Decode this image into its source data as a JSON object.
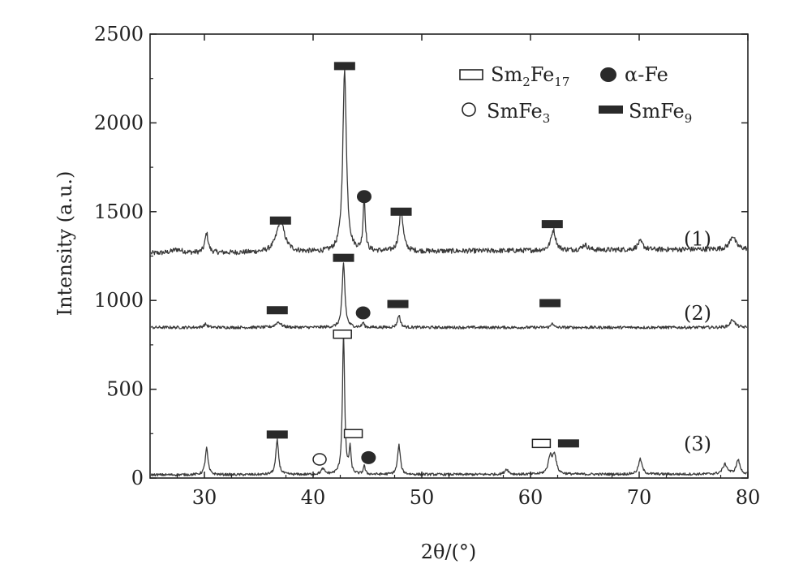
{
  "chart_data": {
    "type": "line",
    "xlabel": "2θ/(°)",
    "ylabel": "Intensity (a.u.)",
    "xlim": [
      25,
      80
    ],
    "ylim": [
      0,
      2500
    ],
    "x_ticks": [
      30,
      40,
      50,
      60,
      70,
      80
    ],
    "y_ticks": [
      0,
      500,
      1000,
      1500,
      2000,
      2500
    ],
    "grid": false,
    "legend_position": "top-right",
    "legend": [
      {
        "marker": "open-rect",
        "base": "Sm",
        "sub1": "2",
        "mid": "Fe",
        "sub2": "17"
      },
      {
        "marker": "filled-circle",
        "text": "α-Fe"
      },
      {
        "marker": "open-circle",
        "base": "SmFe",
        "sub1": "3"
      },
      {
        "marker": "filled-rect",
        "base": "SmFe",
        "sub1": "9"
      }
    ],
    "series": [
      {
        "name": "(1)",
        "baseline": 1265,
        "end_baseline": 1290,
        "noise": 14,
        "peaks": [
          {
            "x": 27.5,
            "h": 20,
            "w": 0.6
          },
          {
            "x": 30.2,
            "h": 110,
            "w": 0.18
          },
          {
            "x": 37.0,
            "h": 175,
            "w": 0.45
          },
          {
            "x": 42.9,
            "h": 1020,
            "w": 0.2
          },
          {
            "x": 44.7,
            "h": 300,
            "w": 0.12
          },
          {
            "x": 48.1,
            "h": 230,
            "w": 0.22
          },
          {
            "x": 62.1,
            "h": 115,
            "w": 0.25
          },
          {
            "x": 65.0,
            "h": 30,
            "w": 0.3
          },
          {
            "x": 70.1,
            "h": 45,
            "w": 0.3
          },
          {
            "x": 78.6,
            "h": 75,
            "w": 0.3
          }
        ]
      },
      {
        "name": "(2)",
        "baseline": 848,
        "end_baseline": 848,
        "noise": 8,
        "peaks": [
          {
            "x": 30.1,
            "h": 18,
            "w": 0.2
          },
          {
            "x": 36.8,
            "h": 30,
            "w": 0.3
          },
          {
            "x": 42.8,
            "h": 360,
            "w": 0.15
          },
          {
            "x": 44.6,
            "h": 28,
            "w": 0.1
          },
          {
            "x": 47.9,
            "h": 70,
            "w": 0.15
          },
          {
            "x": 62.0,
            "h": 30,
            "w": 0.1
          },
          {
            "x": 78.6,
            "h": 45,
            "w": 0.25
          }
        ]
      },
      {
        "name": "(3)",
        "baseline": 18,
        "end_baseline": 22,
        "noise": 7,
        "peaks": [
          {
            "x": 30.2,
            "h": 150,
            "w": 0.15
          },
          {
            "x": 36.7,
            "h": 195,
            "w": 0.15
          },
          {
            "x": 40.9,
            "h": 30,
            "w": 0.2
          },
          {
            "x": 42.8,
            "h": 790,
            "w": 0.12
          },
          {
            "x": 43.4,
            "h": 145,
            "w": 0.1
          },
          {
            "x": 44.7,
            "h": 50,
            "w": 0.1
          },
          {
            "x": 47.9,
            "h": 165,
            "w": 0.15
          },
          {
            "x": 57.8,
            "h": 30,
            "w": 0.2
          },
          {
            "x": 61.8,
            "h": 95,
            "w": 0.2
          },
          {
            "x": 62.2,
            "h": 110,
            "w": 0.2
          },
          {
            "x": 70.1,
            "h": 85,
            "w": 0.2
          },
          {
            "x": 77.9,
            "h": 55,
            "w": 0.25
          },
          {
            "x": 79.1,
            "h": 80,
            "w": 0.2
          }
        ]
      }
    ],
    "markers": [
      {
        "type": "filled-rect",
        "x": 37.0,
        "y": 1450
      },
      {
        "type": "filled-rect",
        "x": 42.9,
        "y": 2320
      },
      {
        "type": "filled-circle",
        "x": 44.7,
        "y": 1585
      },
      {
        "type": "filled-rect",
        "x": 48.1,
        "y": 1500
      },
      {
        "type": "filled-rect",
        "x": 62.0,
        "y": 1430
      },
      {
        "type": "filled-rect",
        "x": 36.7,
        "y": 945
      },
      {
        "type": "filled-rect",
        "x": 42.8,
        "y": 1240
      },
      {
        "type": "filled-circle",
        "x": 44.6,
        "y": 930
      },
      {
        "type": "filled-rect",
        "x": 47.8,
        "y": 980
      },
      {
        "type": "filled-rect",
        "x": 61.8,
        "y": 985
      },
      {
        "type": "open-rect",
        "x": 42.7,
        "y": 810
      },
      {
        "type": "filled-rect",
        "x": 36.7,
        "y": 245
      },
      {
        "type": "open-circle",
        "x": 40.6,
        "y": 105
      },
      {
        "type": "open-rect",
        "x": 43.7,
        "y": 250
      },
      {
        "type": "filled-circle",
        "x": 45.1,
        "y": 115
      },
      {
        "type": "open-rect",
        "x": 61.0,
        "y": 195
      },
      {
        "type": "filled-rect",
        "x": 63.5,
        "y": 195
      }
    ],
    "colors": {
      "line": "#3a3a3a",
      "marker": "#2a2a2a",
      "axis": "#222222"
    }
  }
}
